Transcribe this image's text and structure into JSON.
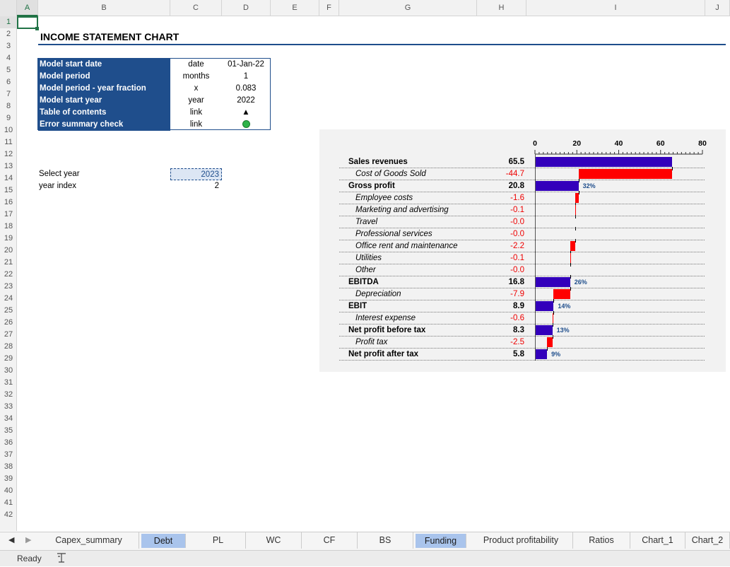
{
  "columns": [
    "A",
    "B",
    "C",
    "D",
    "E",
    "F",
    "G",
    "H",
    "I",
    "J"
  ],
  "rows": [
    "1",
    "2",
    "3",
    "4",
    "5",
    "6",
    "7",
    "8",
    "9",
    "10",
    "11",
    "12",
    "13",
    "14",
    "15",
    "16",
    "17",
    "18",
    "19",
    "20",
    "21",
    "22",
    "23",
    "24",
    "25",
    "26",
    "27",
    "28",
    "29",
    "30",
    "31",
    "32",
    "33",
    "34",
    "35",
    "36",
    "37",
    "38",
    "39",
    "40",
    "41",
    "42"
  ],
  "title": "INCOME STATEMENT CHART",
  "info_table": [
    {
      "label": "Model start date",
      "unit": "date",
      "value": "01-Jan-22"
    },
    {
      "label": "Model period",
      "unit": "months",
      "value": "1"
    },
    {
      "label": "Model period - year fraction",
      "unit": "x",
      "value": "0.083"
    },
    {
      "label": "Model start year",
      "unit": "year",
      "value": "2022"
    },
    {
      "label": "Table of contents",
      "unit": "link",
      "value": "▲"
    },
    {
      "label": "Error summary check",
      "unit": "link",
      "value": ""
    }
  ],
  "select_year": {
    "label": "Select year",
    "value": "2023"
  },
  "year_index": {
    "label": "year index",
    "value": "2"
  },
  "chart_data": {
    "type": "bar",
    "title": "",
    "axis_ticks": [
      "0",
      "20",
      "40",
      "60",
      "80"
    ],
    "xlim": [
      0,
      80
    ],
    "items": [
      {
        "label": "Sales revenues",
        "value": "65.5",
        "num": 65.5,
        "kind": "total",
        "pct": ""
      },
      {
        "label": "Cost of Goods Sold",
        "value": "-44.7",
        "num": -44.7,
        "kind": "neg",
        "pct": ""
      },
      {
        "label": "Gross profit",
        "value": "20.8",
        "num": 20.8,
        "kind": "total",
        "pct": "32%"
      },
      {
        "label": "Employee costs",
        "value": "-1.6",
        "num": -1.6,
        "kind": "neg",
        "pct": ""
      },
      {
        "label": "Marketing and advertising",
        "value": "-0.1",
        "num": -0.1,
        "kind": "neg",
        "pct": ""
      },
      {
        "label": "Travel",
        "value": "-0.0",
        "num": 0,
        "kind": "neg",
        "pct": ""
      },
      {
        "label": "Professional services",
        "value": "-0.0",
        "num": 0,
        "kind": "neg",
        "pct": ""
      },
      {
        "label": "Office rent and maintenance",
        "value": "-2.2",
        "num": -2.2,
        "kind": "neg",
        "pct": ""
      },
      {
        "label": "Utilities",
        "value": "-0.1",
        "num": -0.1,
        "kind": "neg",
        "pct": ""
      },
      {
        "label": "Other",
        "value": "-0.0",
        "num": 0,
        "kind": "neg",
        "pct": ""
      },
      {
        "label": "EBITDA",
        "value": "16.8",
        "num": 16.8,
        "kind": "total",
        "pct": "26%"
      },
      {
        "label": "Depreciation",
        "value": "-7.9",
        "num": -7.9,
        "kind": "neg",
        "pct": ""
      },
      {
        "label": "EBIT",
        "value": "8.9",
        "num": 8.9,
        "kind": "total",
        "pct": "14%"
      },
      {
        "label": "Interest expense",
        "value": "-0.6",
        "num": -0.6,
        "kind": "neg",
        "pct": ""
      },
      {
        "label": "Net profit before tax",
        "value": "8.3",
        "num": 8.3,
        "kind": "total",
        "pct": "13%"
      },
      {
        "label": "Profit tax",
        "value": "-2.5",
        "num": -2.5,
        "kind": "neg",
        "pct": ""
      },
      {
        "label": "Net profit after tax",
        "value": "5.8",
        "num": 5.8,
        "kind": "total",
        "pct": "9%"
      }
    ],
    "colors": {
      "total": "#3300bb",
      "neg": "#ff0000"
    }
  },
  "sheet_tabs": [
    {
      "label": "Capex_summary",
      "active": false
    },
    {
      "label": "Debt",
      "active": true
    },
    {
      "label": "PL",
      "active": false
    },
    {
      "label": "WC",
      "active": false
    },
    {
      "label": "CF",
      "active": false
    },
    {
      "label": "BS",
      "active": false
    },
    {
      "label": "Funding",
      "active": true
    },
    {
      "label": "Product profitability",
      "active": false
    },
    {
      "label": "Ratios",
      "active": false
    },
    {
      "label": "Chart_1",
      "active": false
    },
    {
      "label": "Chart_2",
      "active": false
    }
  ],
  "status": {
    "ready": "Ready"
  }
}
